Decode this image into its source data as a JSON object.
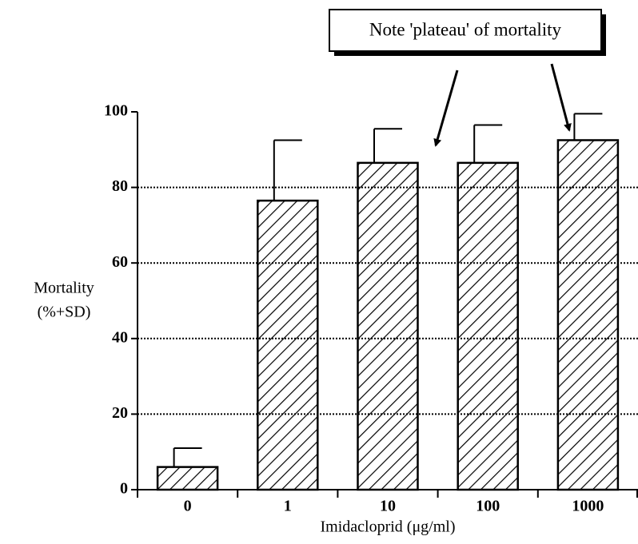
{
  "chart_data": {
    "type": "bar",
    "ylabel": [
      "Mortality",
      "(%+SD)"
    ],
    "xlabel": "Imidacloprid (μg/ml)",
    "annotation": "Note 'plateau' of mortality",
    "categories": [
      "0",
      "1",
      "10",
      "100",
      "1000"
    ],
    "values": [
      6,
      76.5,
      86.5,
      86.5,
      92.5
    ],
    "errors": [
      5,
      16,
      9,
      10,
      7
    ],
    "color": "#000000",
    "ylim": [
      0,
      100
    ],
    "yticks": [
      0,
      20,
      40,
      60,
      80,
      100
    ],
    "grid": true
  }
}
